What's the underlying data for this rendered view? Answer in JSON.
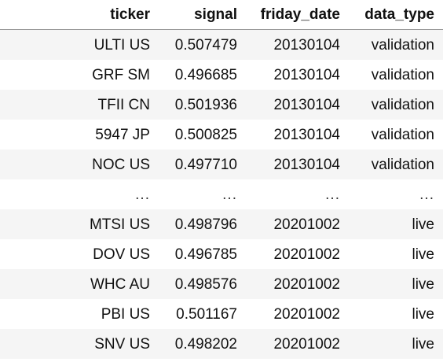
{
  "table": {
    "columns": [
      "ticker",
      "signal",
      "friday_date",
      "data_type"
    ],
    "rows": [
      [
        "ULTI US",
        "0.507479",
        "20130104",
        "validation"
      ],
      [
        "GRF SM",
        "0.496685",
        "20130104",
        "validation"
      ],
      [
        "TFII CN",
        "0.501936",
        "20130104",
        "validation"
      ],
      [
        "5947 JP",
        "0.500825",
        "20130104",
        "validation"
      ],
      [
        "NOC US",
        "0.497710",
        "20130104",
        "validation"
      ],
      [
        "...",
        "...",
        "...",
        "..."
      ],
      [
        "MTSI US",
        "0.498796",
        "20201002",
        "live"
      ],
      [
        "DOV US",
        "0.496785",
        "20201002",
        "live"
      ],
      [
        "WHC AU",
        "0.498576",
        "20201002",
        "live"
      ],
      [
        "PBI US",
        "0.501167",
        "20201002",
        "live"
      ],
      [
        "SNV US",
        "0.498202",
        "20201002",
        "live"
      ]
    ]
  }
}
